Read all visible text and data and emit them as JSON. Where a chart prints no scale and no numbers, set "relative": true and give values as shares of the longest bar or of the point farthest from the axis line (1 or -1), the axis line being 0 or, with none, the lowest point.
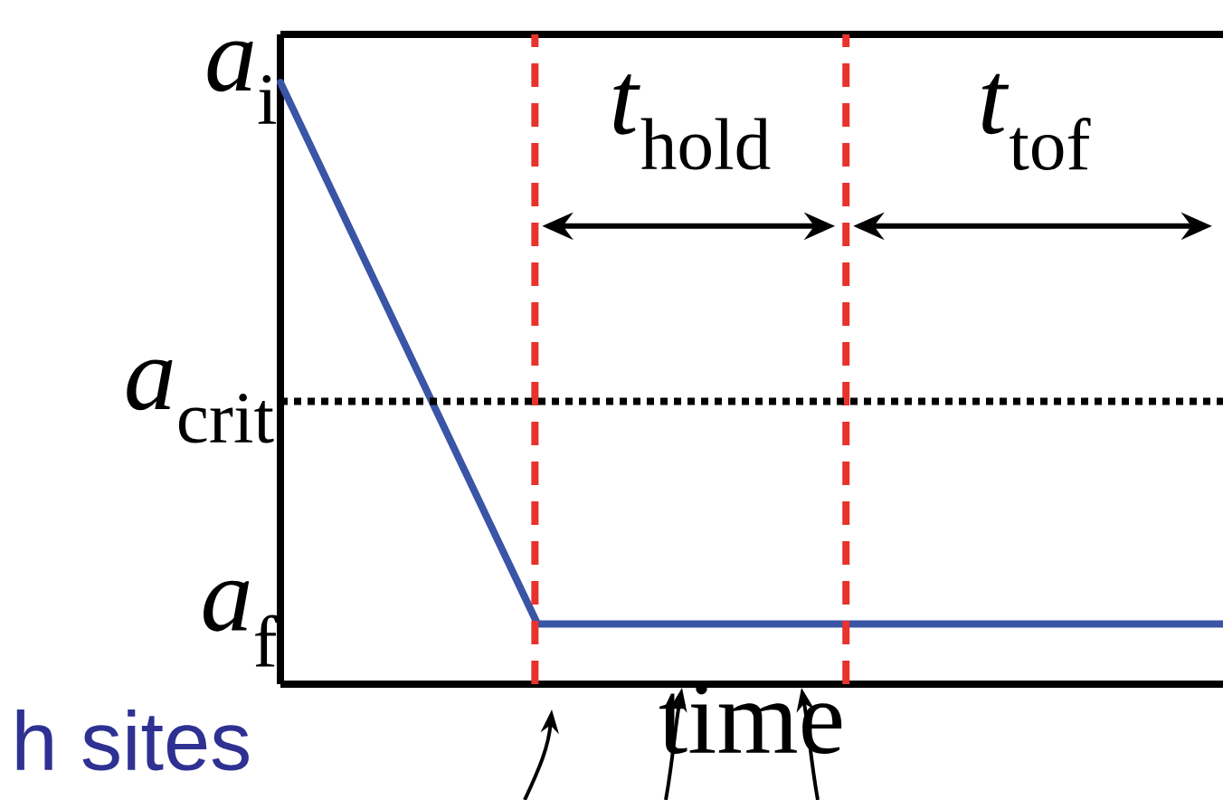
{
  "chart_data": {
    "type": "line",
    "relative": true,
    "xlabel": "time",
    "categories": [
      null,
      null,
      null,
      null,
      null,
      null,
      null,
      null,
      null,
      null,
      null,
      null
    ],
    "series": [
      {
        "color": "#3a55a5",
        "values": [
          1,
          0.7,
          0.4,
          0.1,
          0.1,
          0.1,
          0.1,
          0.1,
          0.1,
          0.1,
          0.1,
          0.1
        ]
      }
    ],
    "ref_lines": [
      {
        "axis": "y",
        "value": 0.47,
        "label": "*a*$_{crit}$",
        "color": "#000000",
        "line_style": "dotted"
      }
    ],
    "annotations": [
      "*t*$_{hold}$",
      "*t*$_{tof}$",
      "*a*$_{i}$",
      "*a*$_{f}$",
      "h sites"
    ]
  }
}
